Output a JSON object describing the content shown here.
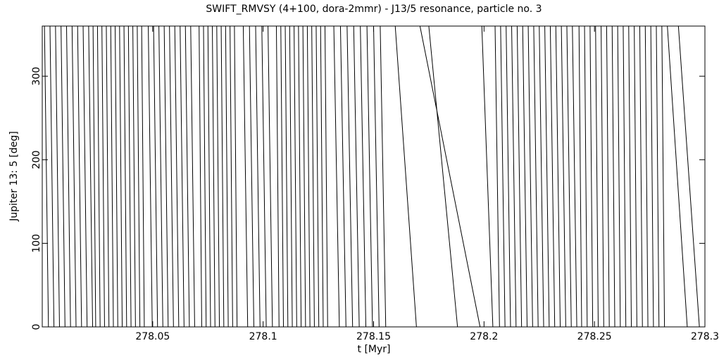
{
  "chart_data": {
    "type": "line",
    "title": "SWIFT_RMVSY (4+100, dora-2mmr) - J13/5 resonance, particle no. 3",
    "xlabel": "t [Myr]",
    "ylabel": "Jupiter 13: 5 [deg]",
    "xlim": [
      278.0,
      278.3
    ],
    "ylim": [
      0,
      360
    ],
    "xticks": [
      278.05,
      278.1,
      278.15,
      278.2,
      278.25,
      278.3
    ],
    "yticks": [
      0,
      100,
      200,
      300
    ],
    "color": "#000000",
    "grid": false,
    "x": [
      278.001,
      278.0028,
      278.0028,
      278.0035,
      278.0053,
      278.0053,
      278.006,
      278.0078,
      278.0078,
      278.0085,
      278.0103,
      278.0103,
      278.011,
      278.0128,
      278.0128,
      278.0135,
      278.0153,
      278.0153,
      278.016,
      278.0178,
      278.0178,
      278.0185,
      278.0203,
      278.0203,
      278.021,
      278.0228,
      278.0228,
      278.023,
      278.0242,
      278.0242,
      278.025,
      278.0262,
      278.0262,
      278.027,
      278.0282,
      278.0282,
      278.029,
      278.0302,
      278.0302,
      278.031,
      278.0322,
      278.0322,
      278.033,
      278.0342,
      278.0342,
      278.035,
      278.0362,
      278.0362,
      278.037,
      278.0382,
      278.0382,
      278.039,
      278.0402,
      278.0402,
      278.041,
      278.0422,
      278.0422,
      278.043,
      278.0442,
      278.0442,
      278.045,
      278.0462,
      278.0462,
      278.048,
      278.0498,
      278.0498,
      278.0504,
      278.0522,
      278.0522,
      278.0528,
      278.0546,
      278.0546,
      278.0552,
      278.057,
      278.057,
      278.0576,
      278.0594,
      278.0594,
      278.06,
      278.0618,
      278.0618,
      278.0624,
      278.0642,
      278.0642,
      278.0648,
      278.0666,
      278.0666,
      278.0672,
      278.069,
      278.069,
      278.071,
      278.0722,
      278.0722,
      278.073,
      278.0742,
      278.0742,
      278.075,
      278.0762,
      278.0762,
      278.077,
      278.0782,
      278.0782,
      278.079,
      278.0802,
      278.0802,
      278.081,
      278.0822,
      278.0822,
      278.083,
      278.0842,
      278.0842,
      278.085,
      278.0862,
      278.0862,
      278.087,
      278.0882,
      278.0882,
      278.091,
      278.093,
      278.093,
      278.0938,
      278.0958,
      278.0958,
      278.0966,
      278.0986,
      278.0986,
      278.0994,
      278.1014,
      278.1014,
      278.1022,
      278.1042,
      278.1042,
      278.106,
      278.1072,
      278.1072,
      278.108,
      278.1092,
      278.1092,
      278.11,
      278.1112,
      278.1112,
      278.112,
      278.1132,
      278.1132,
      278.114,
      278.1152,
      278.1152,
      278.116,
      278.1172,
      278.1172,
      278.118,
      278.1192,
      278.1192,
      278.12,
      278.1212,
      278.1212,
      278.122,
      278.1232,
      278.1232,
      278.124,
      278.1252,
      278.1252,
      278.126,
      278.1272,
      278.1272,
      278.128,
      278.1292,
      278.1292,
      278.132,
      278.1345,
      278.1345,
      278.135,
      278.1375,
      278.1375,
      278.138,
      278.1405,
      278.1405,
      278.141,
      278.1435,
      278.1435,
      278.144,
      278.1465,
      278.1465,
      278.147,
      278.1495,
      278.1495,
      278.15,
      278.1525,
      278.1525,
      278.153,
      278.1555,
      278.1555,
      278.1598,
      278.1694,
      278.1694,
      278.171,
      278.1982,
      278.1982,
      278.175,
      278.188,
      278.188,
      278.199,
      278.204,
      278.204,
      278.205,
      278.207,
      278.207,
      278.2075,
      278.2095,
      278.2095,
      278.21,
      278.212,
      278.212,
      278.2125,
      278.2145,
      278.2145,
      278.215,
      278.217,
      278.217,
      278.2175,
      278.2195,
      278.2195,
      278.22,
      278.222,
      278.222,
      278.2225,
      278.2245,
      278.2245,
      278.225,
      278.227,
      278.227,
      278.2275,
      278.2295,
      278.2295,
      278.23,
      278.232,
      278.232,
      278.2325,
      278.2345,
      278.2345,
      278.235,
      278.237,
      278.237,
      278.2375,
      278.2395,
      278.2395,
      278.24,
      278.242,
      278.242,
      278.243,
      278.2442,
      278.2442,
      278.2455,
      278.2467,
      278.2467,
      278.248,
      278.2492,
      278.2492,
      278.2505,
      278.2517,
      278.2517,
      278.253,
      278.2542,
      278.2542,
      278.2555,
      278.2567,
      278.2567,
      278.258,
      278.2592,
      278.2592,
      278.2605,
      278.2617,
      278.2617,
      278.263,
      278.2642,
      278.2642,
      278.2655,
      278.2667,
      278.2667,
      278.268,
      278.2692,
      278.2692,
      278.2705,
      278.2717,
      278.2717,
      278.273,
      278.2742,
      278.2742,
      278.2755,
      278.2767,
      278.2767,
      278.278,
      278.2792,
      278.2792,
      278.2805,
      278.2817,
      278.2817,
      278.283,
      278.292,
      278.292,
      278.288,
      278.2975
    ],
    "values": [
      360,
      0,
      null,
      360,
      0,
      null,
      360,
      0,
      null,
      360,
      0,
      null,
      360,
      0,
      null,
      360,
      0,
      null,
      360,
      0,
      null,
      360,
      0,
      null,
      360,
      0,
      null,
      360,
      0,
      null,
      360,
      0,
      null,
      360,
      0,
      null,
      360,
      0,
      null,
      360,
      0,
      null,
      360,
      0,
      null,
      360,
      0,
      null,
      360,
      0,
      null,
      360,
      0,
      null,
      360,
      0,
      null,
      360,
      0,
      null,
      360,
      0,
      null,
      360,
      0,
      null,
      360,
      0,
      null,
      360,
      0,
      null,
      360,
      0,
      null,
      360,
      0,
      null,
      360,
      0,
      null,
      360,
      0,
      null,
      360,
      0,
      null,
      360,
      0,
      null,
      360,
      0,
      null,
      360,
      0,
      null,
      360,
      0,
      null,
      360,
      0,
      null,
      360,
      0,
      null,
      360,
      0,
      null,
      360,
      0,
      null,
      360,
      0,
      null,
      360,
      0,
      null,
      360,
      0,
      null,
      360,
      0,
      null,
      360,
      0,
      null,
      360,
      0,
      null,
      360,
      0,
      null,
      360,
      0,
      null,
      360,
      0,
      null,
      360,
      0,
      null,
      360,
      0,
      null,
      360,
      0,
      null,
      360,
      0,
      null,
      360,
      0,
      null,
      360,
      0,
      null,
      360,
      0,
      null,
      360,
      0,
      null,
      360,
      0,
      null,
      360,
      0,
      null,
      360,
      0,
      null,
      360,
      0,
      null,
      360,
      0,
      null,
      360,
      0,
      null,
      360,
      0,
      null,
      360,
      0,
      null,
      360,
      0,
      null,
      360,
      0,
      null,
      360,
      0,
      null,
      360,
      0,
      null,
      360,
      0,
      null,
      360,
      0,
      null,
      360,
      0,
      null,
      360,
      0,
      null,
      360,
      0,
      null,
      360,
      0,
      null,
      360,
      0,
      null,
      360,
      0,
      null,
      360,
      0,
      null,
      360,
      0,
      null,
      360,
      0,
      null,
      360,
      0,
      null,
      360,
      0,
      null,
      360,
      0,
      null,
      360,
      0,
      null,
      360,
      0,
      null,
      360,
      0,
      null,
      360,
      0,
      null,
      360,
      0,
      null,
      360,
      0,
      null,
      360,
      0,
      null,
      360,
      0,
      null,
      360,
      0,
      null,
      360,
      0,
      null,
      360,
      0,
      null,
      360,
      0,
      null,
      360,
      0,
      null,
      360,
      0,
      null,
      360,
      0,
      null,
      360,
      0,
      null,
      360,
      0,
      null,
      360,
      0,
      null,
      360,
      0,
      null,
      360,
      0,
      null,
      360,
      0
    ]
  }
}
